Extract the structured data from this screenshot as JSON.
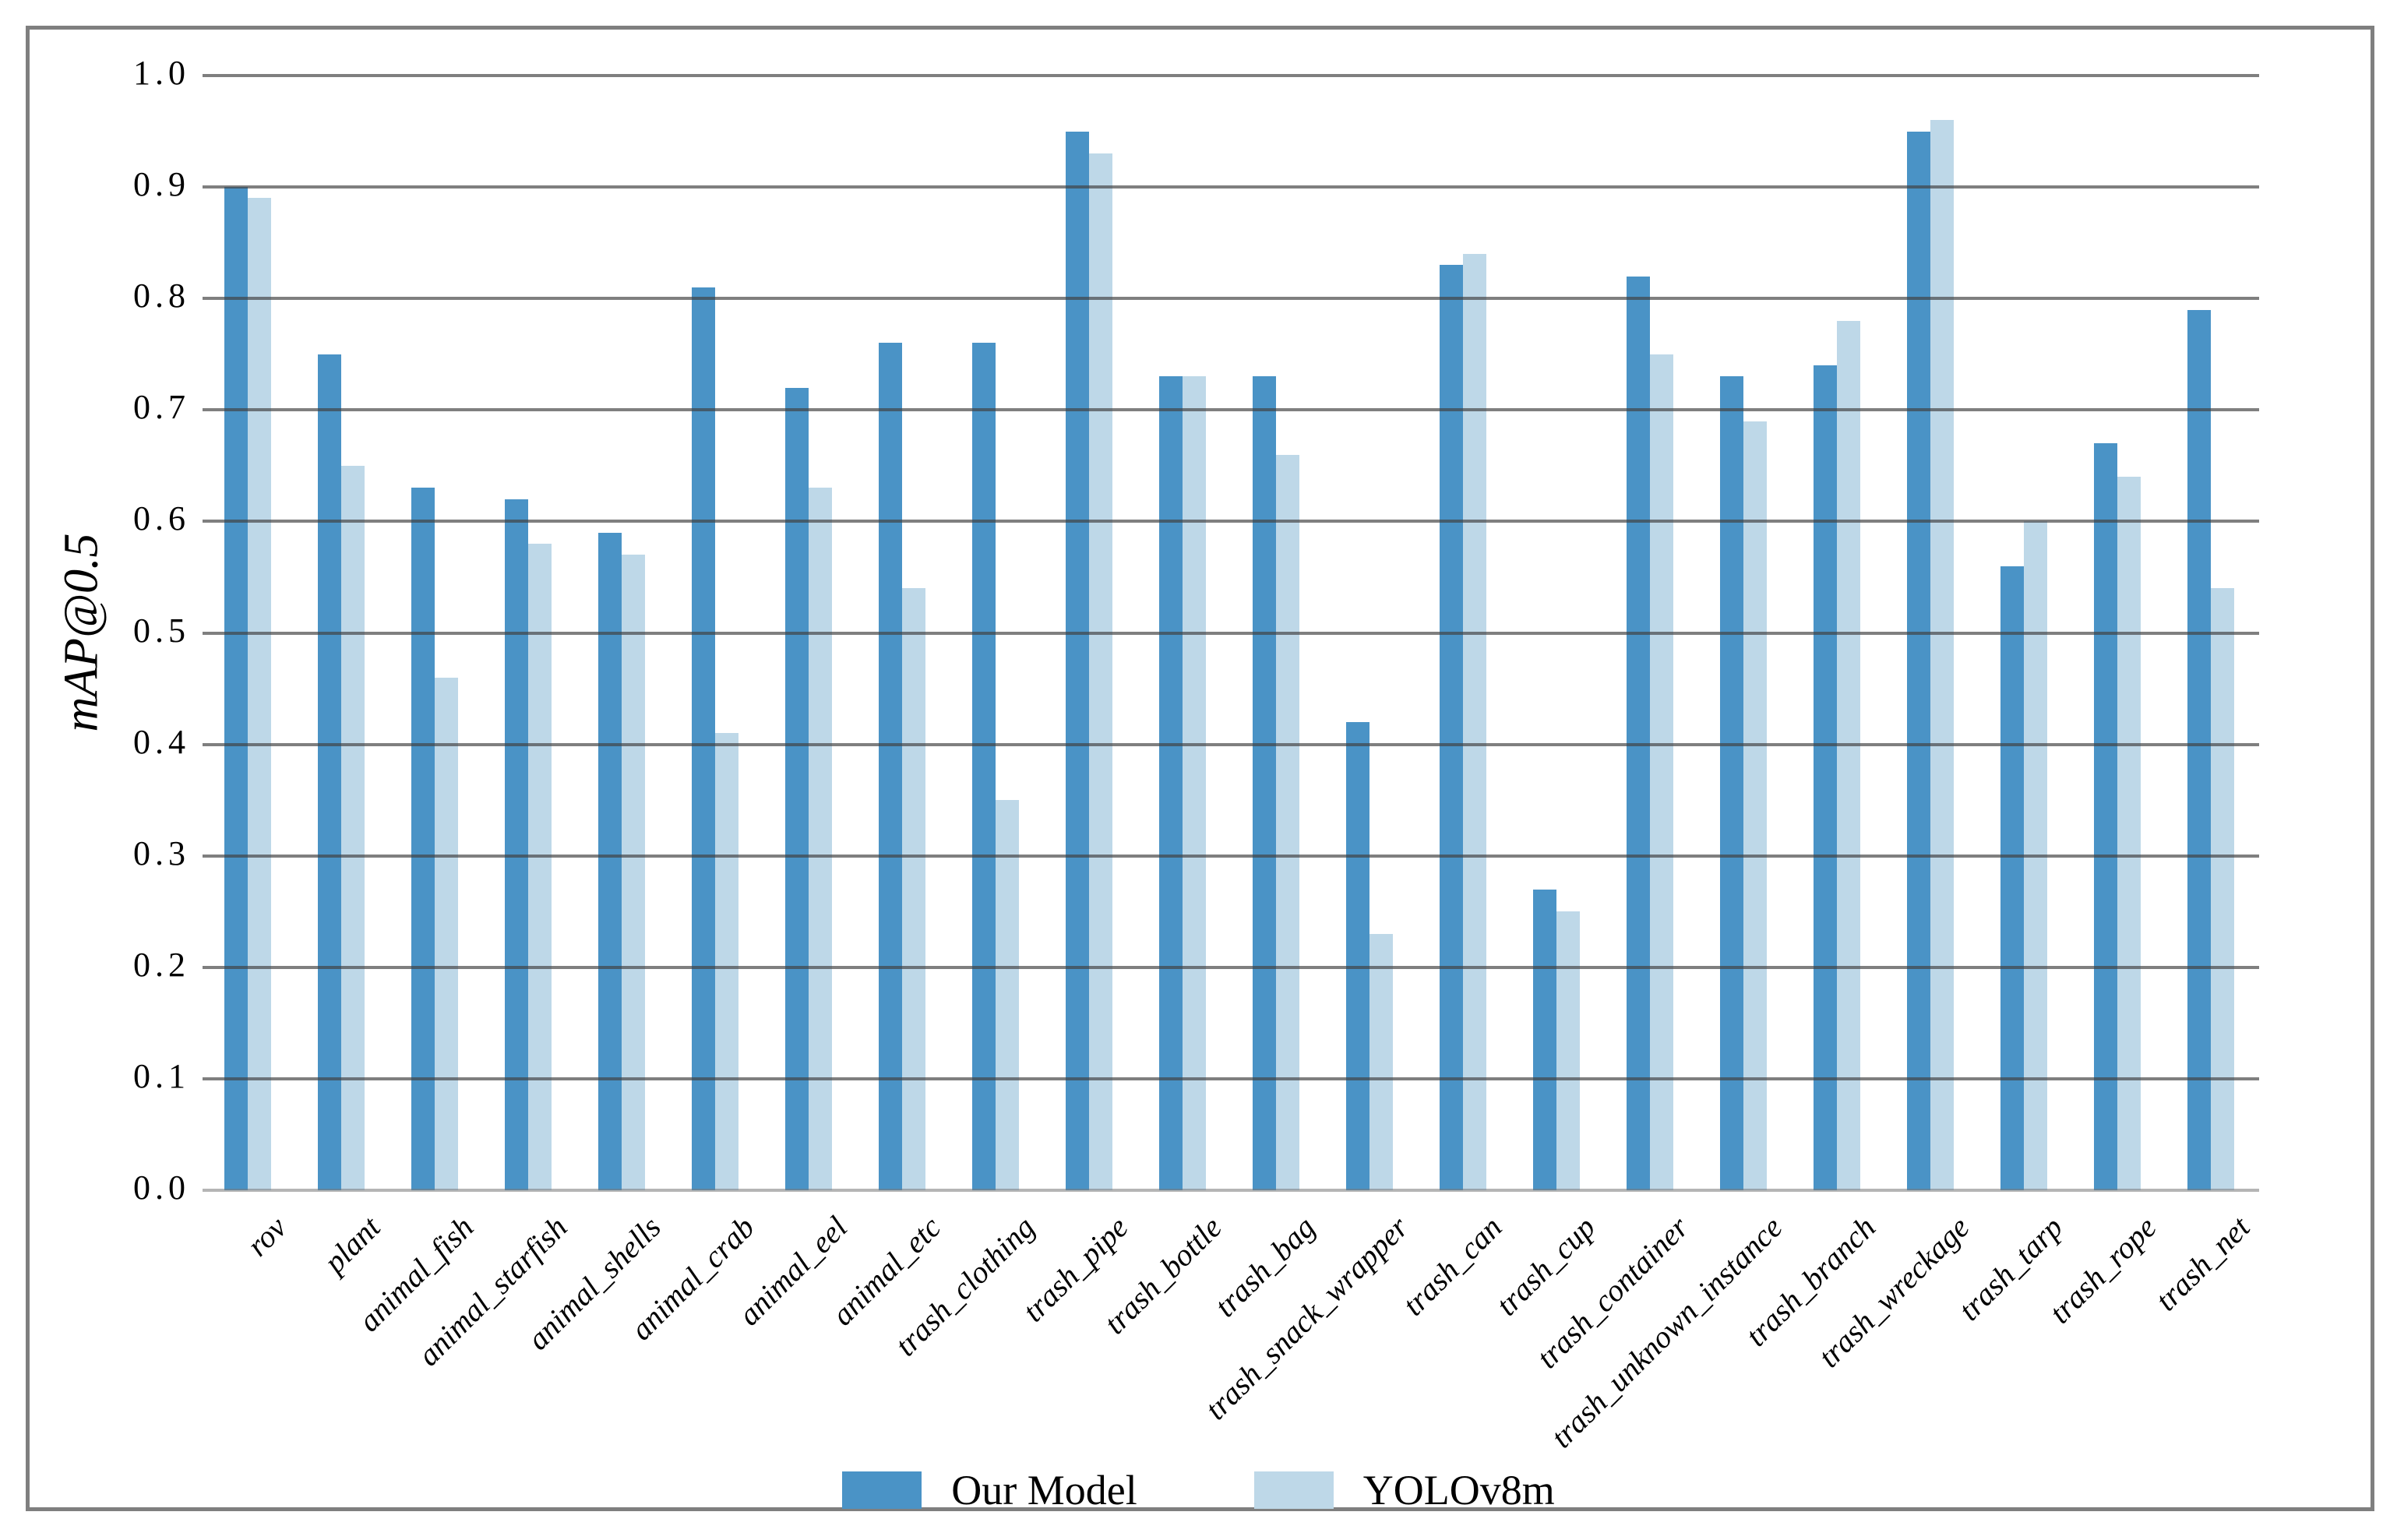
{
  "chart_data": {
    "type": "bar",
    "title": "",
    "xlabel": "",
    "ylabel": "mAP@0.5",
    "ylim": [
      0.0,
      1.0
    ],
    "ytick_step": 0.1,
    "ytick_labels": [
      "0.0",
      "0.1",
      "0.2",
      "0.3",
      "0.4",
      "0.5",
      "0.6",
      "0.7",
      "0.8",
      "0.9",
      "1.0"
    ],
    "grid": true,
    "legend_position": "bottom-center",
    "categories": [
      "rov",
      "plant",
      "animal_fish",
      "animal_starfish",
      "animal_shells",
      "animal_crab",
      "animal_eel",
      "animal_etc",
      "trash_clothing",
      "trash_pipe",
      "trash_bottle",
      "trash_bag",
      "trash_snack_wrapper",
      "trash_can",
      "trash_cup",
      "trash_container",
      "trash_unknown_instance",
      "trash_branch",
      "trash_wreckage",
      "trash_tarp",
      "trash_rope",
      "trash_net"
    ],
    "series": [
      {
        "name": "Our Model",
        "color": "#4a93c6",
        "values": [
          0.9,
          0.75,
          0.63,
          0.62,
          0.59,
          0.81,
          0.72,
          0.76,
          0.76,
          0.95,
          0.73,
          0.73,
          0.42,
          0.83,
          0.27,
          0.82,
          0.73,
          0.74,
          0.95,
          0.56,
          0.67,
          0.79
        ]
      },
      {
        "name": "YOLOv8m",
        "color": "#bed8e8",
        "values": [
          0.89,
          0.65,
          0.46,
          0.58,
          0.57,
          0.41,
          0.63,
          0.54,
          0.35,
          0.93,
          0.73,
          0.66,
          0.23,
          0.84,
          0.25,
          0.75,
          0.69,
          0.78,
          0.96,
          0.6,
          0.64,
          0.54
        ]
      }
    ]
  },
  "colors": {
    "grid": "#7f7f7f",
    "frame": "#7f7f7f",
    "baseline": "#bfbfbf",
    "background": "#ffffff",
    "text": "#000000"
  }
}
